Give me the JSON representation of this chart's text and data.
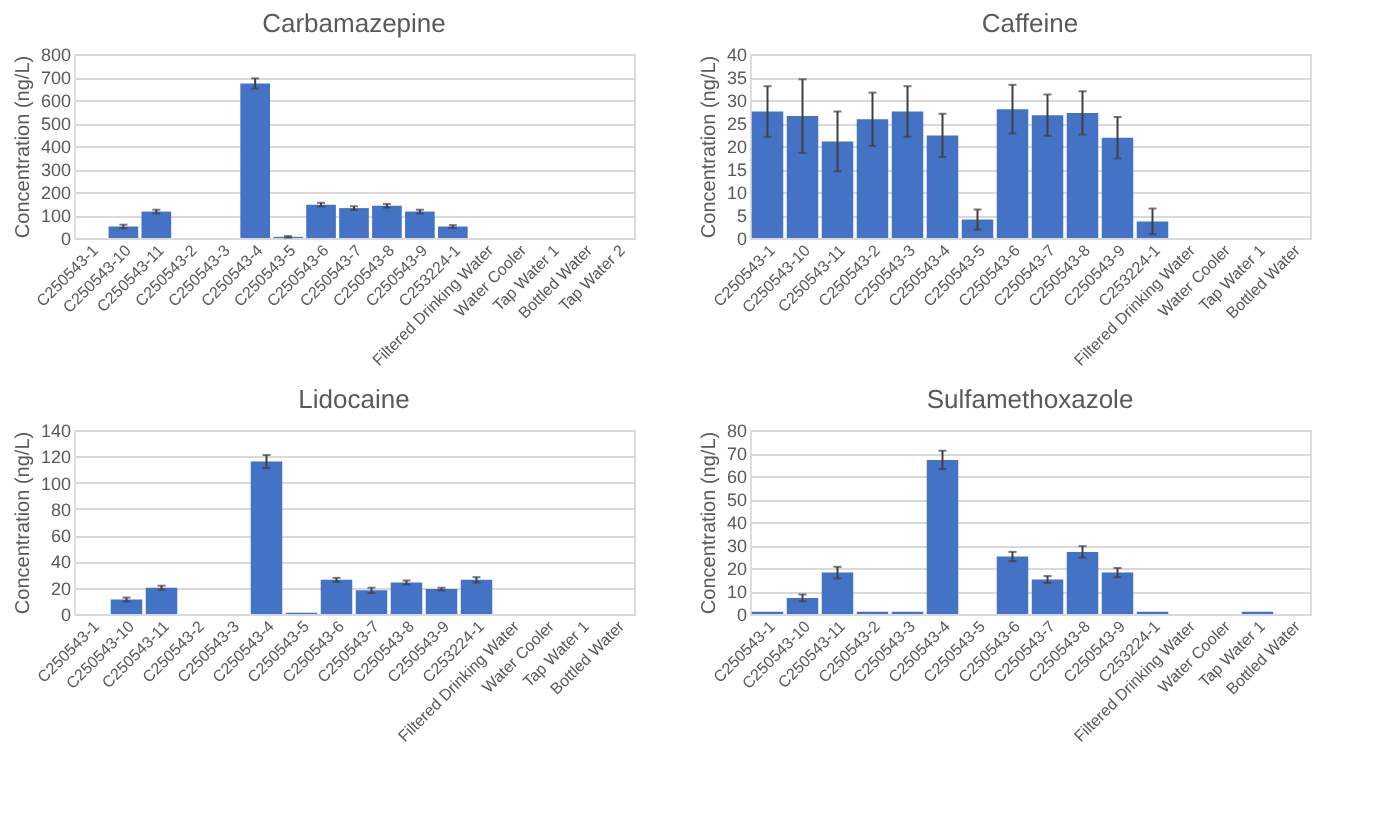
{
  "chart_data": [
    {
      "type": "bar",
      "title": "Carbamazepine",
      "ylabel": "Concentration (ng/L)",
      "categories": [
        "C250543-1",
        "C250543-10",
        "C250543-11",
        "C250543-2",
        "C250543-3",
        "C250543-4",
        "C250543-5",
        "C250543-6",
        "C250543-7",
        "C250543-8",
        "C250543-9",
        "C253224-1",
        "Filtered Drinking Water",
        "Water Cooler",
        "Tap Water 1",
        "Bottled Water",
        "Tap Water 2"
      ],
      "values": [
        0,
        50,
        115,
        0,
        0,
        672,
        5,
        145,
        130,
        140,
        115,
        50,
        0,
        0,
        0,
        0,
        0
      ],
      "errors": [
        null,
        8,
        8,
        null,
        null,
        22,
        3,
        8,
        8,
        8,
        8,
        6,
        null,
        null,
        null,
        null,
        null
      ],
      "color": "#4472c4",
      "ylim": [
        0,
        800
      ],
      "yticks": [
        0,
        100,
        200,
        300,
        400,
        500,
        600,
        700,
        800
      ],
      "grid": "y"
    },
    {
      "type": "bar",
      "title": "Caffeine",
      "ylabel": "Concentration (ng/L)",
      "categories": [
        "C250543-1",
        "C250543-10",
        "C250543-11",
        "C250543-2",
        "C250543-3",
        "C250543-4",
        "C250543-5",
        "C250543-6",
        "C250543-7",
        "C250543-8",
        "C250543-9",
        "C253224-1",
        "Filtered Drinking Water",
        "Water Cooler",
        "Tap Water 1",
        "Bottled Water"
      ],
      "values": [
        27.5,
        26.5,
        21,
        25.8,
        27.5,
        22.3,
        4,
        28,
        26.7,
        27.2,
        21.8,
        3.6,
        0,
        0,
        0,
        0
      ],
      "errors": [
        5.5,
        8,
        6.5,
        5.8,
        5.5,
        4.7,
        2.2,
        5.3,
        4.5,
        4.7,
        4.5,
        2.8,
        null,
        null,
        null,
        null
      ],
      "color": "#4472c4",
      "ylim": [
        0,
        40
      ],
      "yticks": [
        0,
        5,
        10,
        15,
        20,
        25,
        30,
        35,
        40
      ],
      "grid": "y"
    },
    {
      "type": "bar",
      "title": "Lidocaine",
      "ylabel": "Concentration (ng/L)",
      "categories": [
        "C250543-1",
        "C250543-10",
        "C250543-11",
        "C250543-2",
        "C250543-3",
        "C250543-4",
        "C250543-5",
        "C250543-6",
        "C250543-7",
        "C250543-8",
        "C250543-9",
        "C253224-1",
        "Filtered Drinking Water",
        "Water Cooler",
        "Tap Water 1",
        "Bottled Water"
      ],
      "values": [
        0,
        11,
        20,
        0,
        0,
        116,
        1,
        26,
        18,
        24,
        19,
        26,
        0,
        0,
        0,
        0
      ],
      "errors": [
        null,
        1.5,
        1.5,
        null,
        null,
        5,
        null,
        1.5,
        2,
        1.5,
        1,
        2,
        null,
        null,
        null,
        null
      ],
      "color": "#4472c4",
      "ylim": [
        0,
        140
      ],
      "yticks": [
        0,
        20,
        40,
        60,
        80,
        100,
        120,
        140
      ],
      "grid": "y"
    },
    {
      "type": "bar",
      "title": "Sulfamethoxazole",
      "ylabel": "Concentration (ng/L)",
      "categories": [
        "C250543-1",
        "C250543-10",
        "C250543-11",
        "C250543-2",
        "C250543-3",
        "C250543-4",
        "C250543-5",
        "C250543-6",
        "C250543-7",
        "C250543-8",
        "C250543-9",
        "C253224-1",
        "Filtered Drinking Water",
        "Water Cooler",
        "Tap Water 1",
        "Bottled Water"
      ],
      "values": [
        1,
        7,
        18,
        1,
        1,
        67,
        0,
        25,
        15,
        27,
        18,
        1,
        0,
        0,
        1,
        0
      ],
      "errors": [
        null,
        1.5,
        2.5,
        null,
        null,
        4,
        null,
        2,
        1.5,
        2.5,
        2,
        null,
        null,
        null,
        null,
        null
      ],
      "color": "#4472c4",
      "ylim": [
        0,
        80
      ],
      "yticks": [
        0,
        10,
        20,
        30,
        40,
        50,
        60,
        70,
        80
      ],
      "grid": "y"
    }
  ]
}
